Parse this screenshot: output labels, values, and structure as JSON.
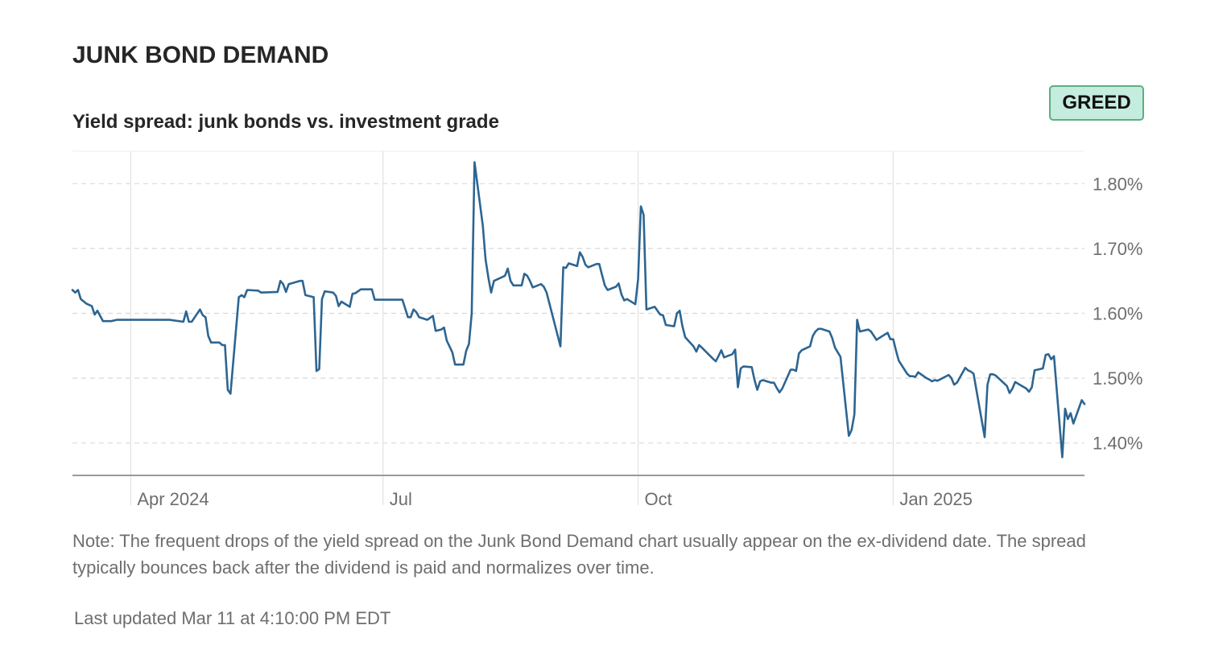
{
  "header": {
    "title": "JUNK BOND DEMAND",
    "subtitle": "Yield spread: junk bonds vs. investment grade",
    "badge": "GREED"
  },
  "colors": {
    "line": "#2d6591",
    "badge_bg": "#c4ecdf",
    "badge_border": "#5fae7f",
    "grid": "#d9d9d9",
    "axis": "#9a9a9a",
    "text_muted": "#6e6e6e"
  },
  "chart_data": {
    "type": "line",
    "title": "Yield spread: junk bonds vs. investment grade",
    "xlabel": "",
    "ylabel": "",
    "ylim": [
      1.35,
      1.85
    ],
    "xlim": [
      "2024-03-11",
      "2025-03-11"
    ],
    "y_ticks": [
      {
        "value": 1.8,
        "label": "1.80%"
      },
      {
        "value": 1.7,
        "label": "1.70%"
      },
      {
        "value": 1.6,
        "label": "1.60%"
      },
      {
        "value": 1.5,
        "label": "1.50%"
      },
      {
        "value": 1.4,
        "label": "1.40%"
      }
    ],
    "x_ticks": [
      {
        "date": "2024-04-01",
        "label": "Apr 2024"
      },
      {
        "date": "2024-07-01",
        "label": "Jul"
      },
      {
        "date": "2024-10-01",
        "label": "Oct"
      },
      {
        "date": "2025-01-01",
        "label": "Jan 2025"
      }
    ],
    "grid": true,
    "legend": "none",
    "series": [
      {
        "points": [
          [
            "2024-03-11",
            1.636
          ],
          [
            "2024-03-12",
            1.632
          ],
          [
            "2024-03-13",
            1.636
          ],
          [
            "2024-03-14",
            1.622
          ],
          [
            "2024-03-16",
            1.615
          ],
          [
            "2024-03-18",
            1.611
          ],
          [
            "2024-03-19",
            1.598
          ],
          [
            "2024-03-20",
            1.604
          ],
          [
            "2024-03-22",
            1.588
          ],
          [
            "2024-03-25",
            1.588
          ],
          [
            "2024-03-27",
            1.59
          ],
          [
            "2024-04-05",
            1.59
          ],
          [
            "2024-04-15",
            1.59
          ],
          [
            "2024-04-20",
            1.587
          ],
          [
            "2024-04-21",
            1.603
          ],
          [
            "2024-04-22",
            1.587
          ],
          [
            "2024-04-23",
            1.587
          ],
          [
            "2024-04-26",
            1.606
          ],
          [
            "2024-04-27",
            1.597
          ],
          [
            "2024-04-28",
            1.594
          ],
          [
            "2024-04-29",
            1.565
          ],
          [
            "2024-04-30",
            1.555
          ],
          [
            "2024-05-03",
            1.555
          ],
          [
            "2024-05-04",
            1.551
          ],
          [
            "2024-05-05",
            1.551
          ],
          [
            "2024-05-06",
            1.482
          ],
          [
            "2024-05-07",
            1.476
          ],
          [
            "2024-05-10",
            1.625
          ],
          [
            "2024-05-11",
            1.628
          ],
          [
            "2024-05-12",
            1.625
          ],
          [
            "2024-05-13",
            1.636
          ],
          [
            "2024-05-17",
            1.635
          ],
          [
            "2024-05-18",
            1.632
          ],
          [
            "2024-05-24",
            1.633
          ],
          [
            "2024-05-25",
            1.65
          ],
          [
            "2024-05-26",
            1.645
          ],
          [
            "2024-05-27",
            1.633
          ],
          [
            "2024-05-28",
            1.645
          ],
          [
            "2024-06-01",
            1.65
          ],
          [
            "2024-06-02",
            1.65
          ],
          [
            "2024-06-03",
            1.628
          ],
          [
            "2024-06-06",
            1.625
          ],
          [
            "2024-06-07",
            1.511
          ],
          [
            "2024-06-08",
            1.514
          ],
          [
            "2024-06-09",
            1.622
          ],
          [
            "2024-06-10",
            1.634
          ],
          [
            "2024-06-13",
            1.632
          ],
          [
            "2024-06-14",
            1.627
          ],
          [
            "2024-06-15",
            1.611
          ],
          [
            "2024-06-16",
            1.618
          ],
          [
            "2024-06-19",
            1.61
          ],
          [
            "2024-06-20",
            1.63
          ],
          [
            "2024-06-21",
            1.631
          ],
          [
            "2024-06-23",
            1.637
          ],
          [
            "2024-06-27",
            1.637
          ],
          [
            "2024-06-28",
            1.621
          ],
          [
            "2024-07-08",
            1.621
          ],
          [
            "2024-07-10",
            1.594
          ],
          [
            "2024-07-11",
            1.594
          ],
          [
            "2024-07-12",
            1.606
          ],
          [
            "2024-07-13",
            1.602
          ],
          [
            "2024-07-14",
            1.594
          ],
          [
            "2024-07-17",
            1.59
          ],
          [
            "2024-07-19",
            1.596
          ],
          [
            "2024-07-20",
            1.573
          ],
          [
            "2024-07-22",
            1.575
          ],
          [
            "2024-07-23",
            1.578
          ],
          [
            "2024-07-24",
            1.558
          ],
          [
            "2024-07-26",
            1.54
          ],
          [
            "2024-07-27",
            1.521
          ],
          [
            "2024-07-30",
            1.521
          ],
          [
            "2024-07-31",
            1.542
          ],
          [
            "2024-08-01",
            1.553
          ],
          [
            "2024-08-02",
            1.6
          ],
          [
            "2024-08-03",
            1.833
          ],
          [
            "2024-08-06",
            1.735
          ],
          [
            "2024-08-07",
            1.683
          ],
          [
            "2024-08-08",
            1.655
          ],
          [
            "2024-08-09",
            1.632
          ],
          [
            "2024-08-10",
            1.65
          ],
          [
            "2024-08-13",
            1.656
          ],
          [
            "2024-08-14",
            1.658
          ],
          [
            "2024-08-15",
            1.669
          ],
          [
            "2024-08-16",
            1.65
          ],
          [
            "2024-08-17",
            1.643
          ],
          [
            "2024-08-20",
            1.643
          ],
          [
            "2024-08-21",
            1.661
          ],
          [
            "2024-08-22",
            1.658
          ],
          [
            "2024-08-23",
            1.65
          ],
          [
            "2024-08-24",
            1.64
          ],
          [
            "2024-08-27",
            1.645
          ],
          [
            "2024-08-28",
            1.641
          ],
          [
            "2024-08-29",
            1.632
          ],
          [
            "2024-09-03",
            1.549
          ],
          [
            "2024-09-04",
            1.671
          ],
          [
            "2024-09-05",
            1.67
          ],
          [
            "2024-09-06",
            1.677
          ],
          [
            "2024-09-09",
            1.673
          ],
          [
            "2024-09-10",
            1.694
          ],
          [
            "2024-09-11",
            1.687
          ],
          [
            "2024-09-12",
            1.675
          ],
          [
            "2024-09-13",
            1.671
          ],
          [
            "2024-09-16",
            1.676
          ],
          [
            "2024-09-17",
            1.676
          ],
          [
            "2024-09-18",
            1.659
          ],
          [
            "2024-09-19",
            1.643
          ],
          [
            "2024-09-20",
            1.636
          ],
          [
            "2024-09-23",
            1.641
          ],
          [
            "2024-09-24",
            1.646
          ],
          [
            "2024-09-25",
            1.629
          ],
          [
            "2024-09-26",
            1.62
          ],
          [
            "2024-09-27",
            1.622
          ],
          [
            "2024-09-30",
            1.614
          ],
          [
            "2024-10-01",
            1.652
          ],
          [
            "2024-10-02",
            1.765
          ],
          [
            "2024-10-03",
            1.752
          ],
          [
            "2024-10-04",
            1.606
          ],
          [
            "2024-10-07",
            1.61
          ],
          [
            "2024-10-08",
            1.604
          ],
          [
            "2024-10-09",
            1.598
          ],
          [
            "2024-10-10",
            1.597
          ],
          [
            "2024-10-11",
            1.582
          ],
          [
            "2024-10-14",
            1.58
          ],
          [
            "2024-10-15",
            1.6
          ],
          [
            "2024-10-16",
            1.604
          ],
          [
            "2024-10-17",
            1.58
          ],
          [
            "2024-10-18",
            1.563
          ],
          [
            "2024-10-21",
            1.549
          ],
          [
            "2024-10-22",
            1.541
          ],
          [
            "2024-10-23",
            1.551
          ],
          [
            "2024-10-24",
            1.547
          ],
          [
            "2024-10-28",
            1.53
          ],
          [
            "2024-10-29",
            1.526
          ],
          [
            "2024-10-30",
            1.534
          ],
          [
            "2024-10-31",
            1.543
          ],
          [
            "2024-11-01",
            1.532
          ],
          [
            "2024-11-04",
            1.537
          ],
          [
            "2024-11-05",
            1.544
          ],
          [
            "2024-11-06",
            1.486
          ],
          [
            "2024-11-07",
            1.515
          ],
          [
            "2024-11-08",
            1.518
          ],
          [
            "2024-11-11",
            1.517
          ],
          [
            "2024-11-12",
            1.497
          ],
          [
            "2024-11-13",
            1.482
          ],
          [
            "2024-11-14",
            1.495
          ],
          [
            "2024-11-15",
            1.497
          ],
          [
            "2024-11-18",
            1.493
          ],
          [
            "2024-11-19",
            1.493
          ],
          [
            "2024-11-20",
            1.485
          ],
          [
            "2024-11-21",
            1.478
          ],
          [
            "2024-11-22",
            1.484
          ],
          [
            "2024-11-25",
            1.513
          ],
          [
            "2024-11-26",
            1.513
          ],
          [
            "2024-11-27",
            1.511
          ],
          [
            "2024-11-28",
            1.538
          ],
          [
            "2024-11-29",
            1.543
          ],
          [
            "2024-12-02",
            1.549
          ],
          [
            "2024-12-03",
            1.565
          ],
          [
            "2024-12-04",
            1.572
          ],
          [
            "2024-12-05",
            1.576
          ],
          [
            "2024-12-06",
            1.576
          ],
          [
            "2024-12-09",
            1.572
          ],
          [
            "2024-12-10",
            1.562
          ],
          [
            "2024-12-11",
            1.547
          ],
          [
            "2024-12-12",
            1.54
          ],
          [
            "2024-12-13",
            1.533
          ],
          [
            "2024-12-16",
            1.411
          ],
          [
            "2024-12-17",
            1.42
          ],
          [
            "2024-12-18",
            1.444
          ],
          [
            "2024-12-19",
            1.59
          ],
          [
            "2024-12-20",
            1.572
          ],
          [
            "2024-12-23",
            1.575
          ],
          [
            "2024-12-24",
            1.572
          ],
          [
            "2024-12-26",
            1.559
          ],
          [
            "2024-12-27",
            1.562
          ],
          [
            "2024-12-30",
            1.57
          ],
          [
            "2024-12-31",
            1.56
          ],
          [
            "2025-01-01",
            1.56
          ],
          [
            "2025-01-02",
            1.543
          ],
          [
            "2025-01-03",
            1.527
          ],
          [
            "2025-01-06",
            1.507
          ],
          [
            "2025-01-07",
            1.503
          ],
          [
            "2025-01-08",
            1.503
          ],
          [
            "2025-01-09",
            1.502
          ],
          [
            "2025-01-10",
            1.509
          ],
          [
            "2025-01-13",
            1.5
          ],
          [
            "2025-01-14",
            1.498
          ],
          [
            "2025-01-15",
            1.495
          ],
          [
            "2025-01-16",
            1.497
          ],
          [
            "2025-01-17",
            1.496
          ],
          [
            "2025-01-21",
            1.505
          ],
          [
            "2025-01-22",
            1.5
          ],
          [
            "2025-01-23",
            1.49
          ],
          [
            "2025-01-24",
            1.493
          ],
          [
            "2025-01-27",
            1.516
          ],
          [
            "2025-01-28",
            1.512
          ],
          [
            "2025-01-29",
            1.51
          ],
          [
            "2025-01-30",
            1.507
          ],
          [
            "2025-02-03",
            1.409
          ],
          [
            "2025-02-04",
            1.49
          ],
          [
            "2025-02-05",
            1.506
          ],
          [
            "2025-02-06",
            1.506
          ],
          [
            "2025-02-07",
            1.504
          ],
          [
            "2025-02-10",
            1.492
          ],
          [
            "2025-02-11",
            1.488
          ],
          [
            "2025-02-12",
            1.477
          ],
          [
            "2025-02-13",
            1.484
          ],
          [
            "2025-02-14",
            1.494
          ],
          [
            "2025-02-18",
            1.484
          ],
          [
            "2025-02-19",
            1.479
          ],
          [
            "2025-02-20",
            1.486
          ],
          [
            "2025-02-21",
            1.512
          ],
          [
            "2025-02-24",
            1.515
          ],
          [
            "2025-02-25",
            1.536
          ],
          [
            "2025-02-26",
            1.537
          ],
          [
            "2025-02-27",
            1.529
          ],
          [
            "2025-02-28",
            1.534
          ],
          [
            "2025-03-03",
            1.378
          ],
          [
            "2025-03-04",
            1.453
          ],
          [
            "2025-03-05",
            1.437
          ],
          [
            "2025-03-06",
            1.446
          ],
          [
            "2025-03-07",
            1.43
          ],
          [
            "2025-03-10",
            1.466
          ],
          [
            "2025-03-11",
            1.46
          ]
        ]
      }
    ]
  },
  "footer": {
    "note": "Note: The frequent drops of the yield spread on the Junk Bond Demand chart usually appear on the ex-dividend date. The spread typically bounces back after the dividend is paid and normalizes over time.",
    "last_updated": "Last updated Mar 11 at 4:10:00 PM EDT"
  }
}
